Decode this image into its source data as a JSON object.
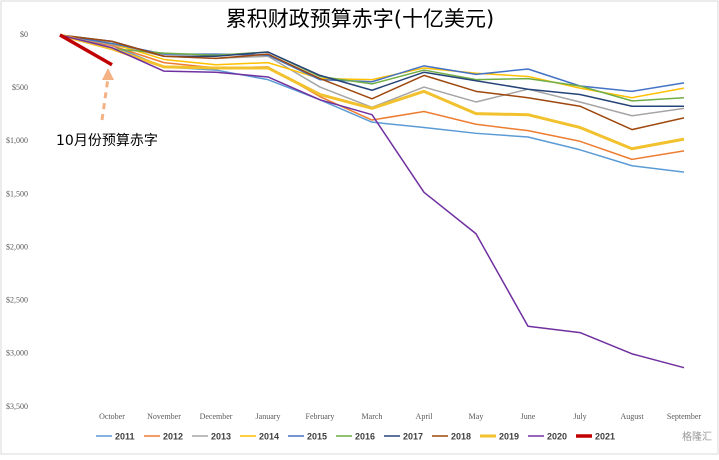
{
  "chart_data": {
    "type": "line",
    "title": "累积财政预算赤字(十亿美元)",
    "categories": [
      null,
      "October",
      "November",
      "December",
      "January",
      "February",
      "March",
      "April",
      "May",
      "June",
      "July",
      "August",
      "September"
    ],
    "ylim": [
      0,
      3500
    ],
    "y_inverted": true,
    "yticks": [
      {
        "value": 0,
        "label": "$0"
      },
      {
        "value": 500,
        "label": "$500"
      },
      {
        "value": 1000,
        "label": "$1,000"
      },
      {
        "value": 1500,
        "label": "$1,500"
      },
      {
        "value": 2000,
        "label": "$2,000"
      },
      {
        "value": 2500,
        "label": "$2,500"
      },
      {
        "value": 3000,
        "label": "$3,000"
      },
      {
        "value": 3500,
        "label": "$3,500"
      }
    ],
    "grid": false,
    "legend": "bottom",
    "annotation": "10月份预算赤字",
    "watermark": "格隆汇",
    "series": [
      {
        "name": "2011",
        "color": "#5b9bd5",
        "width": 1.5,
        "values": [
          0,
          100,
          300,
          330,
          420,
          610,
          820,
          870,
          925,
          960,
          1080,
          1230,
          1290
        ]
      },
      {
        "name": "2012",
        "color": "#ed7d31",
        "width": 1.5,
        "values": [
          0,
          100,
          260,
          310,
          300,
          580,
          800,
          720,
          840,
          900,
          1000,
          1170,
          1090
        ]
      },
      {
        "name": "2013",
        "color": "#a5a5a5",
        "width": 1.5,
        "values": [
          0,
          90,
          200,
          220,
          200,
          490,
          680,
          490,
          630,
          510,
          630,
          760,
          690
        ]
      },
      {
        "name": "2014",
        "color": "#ffc000",
        "width": 1.5,
        "values": [
          0,
          80,
          230,
          280,
          260,
          410,
          420,
          310,
          360,
          390,
          500,
          590,
          500
        ]
      },
      {
        "name": "2015",
        "color": "#4472c4",
        "width": 1.5,
        "values": [
          0,
          80,
          180,
          180,
          190,
          420,
          440,
          290,
          370,
          320,
          480,
          530,
          450
        ]
      },
      {
        "name": "2016",
        "color": "#70ad47",
        "width": 1.5,
        "values": [
          0,
          130,
          170,
          190,
          160,
          390,
          460,
          330,
          420,
          410,
          480,
          620,
          590
        ]
      },
      {
        "name": "2017",
        "color": "#264478",
        "width": 1.5,
        "values": [
          0,
          60,
          200,
          200,
          160,
          380,
          520,
          350,
          430,
          510,
          560,
          670,
          670
        ]
      },
      {
        "name": "2018",
        "color": "#9e480e",
        "width": 1.5,
        "values": [
          0,
          60,
          200,
          220,
          180,
          410,
          600,
          380,
          530,
          590,
          670,
          890,
          780
        ]
      },
      {
        "name": "2019",
        "color": "#f2c12e",
        "width": 3,
        "values": [
          0,
          130,
          300,
          310,
          310,
          560,
          690,
          530,
          740,
          750,
          870,
          1070,
          980
        ]
      },
      {
        "name": "2020",
        "color": "#7030a0",
        "width": 1.5,
        "values": [
          0,
          120,
          340,
          350,
          395,
          610,
          750,
          1480,
          1870,
          2740,
          2800,
          3000,
          3130
        ]
      },
      {
        "name": "2021",
        "color": "#c00000",
        "width": 3.5,
        "values": [
          0,
          280,
          null,
          null,
          null,
          null,
          null,
          null,
          null,
          null,
          null,
          null,
          null
        ]
      }
    ]
  }
}
